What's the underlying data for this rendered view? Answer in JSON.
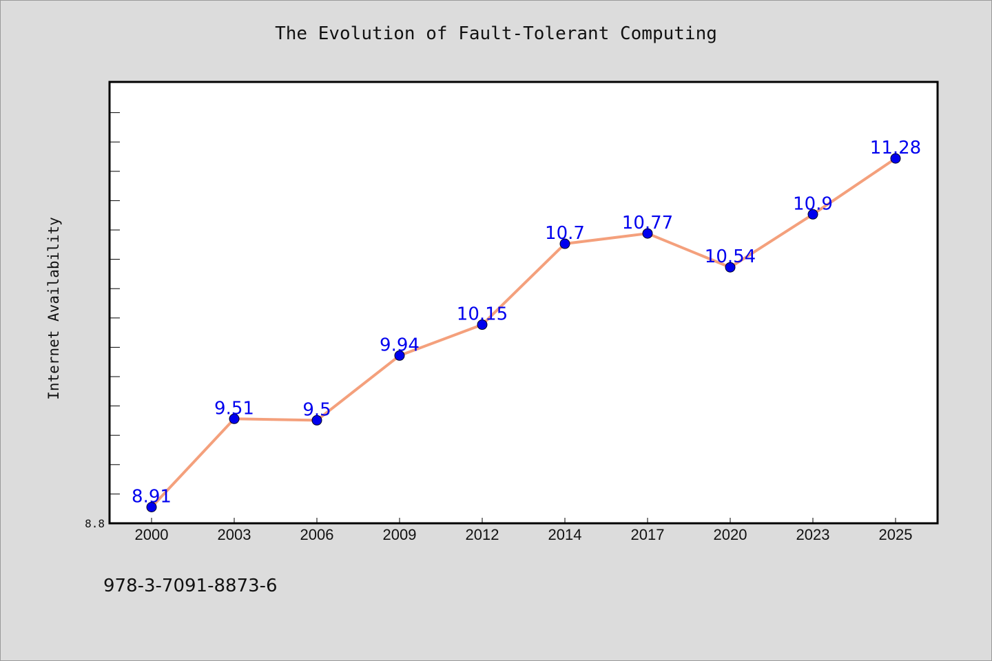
{
  "chart_data": {
    "type": "line",
    "title": "The Evolution of Fault-Tolerant Computing",
    "xlabel": "",
    "ylabel": "Internet Availability",
    "categories": [
      "2000",
      "2003",
      "2006",
      "2009",
      "2012",
      "2014",
      "2017",
      "2020",
      "2023",
      "2025"
    ],
    "series": [
      {
        "values": [
          8.91,
          9.51,
          9.5,
          9.94,
          10.15,
          10.7,
          10.77,
          10.54,
          10.9,
          11.28
        ],
        "line_color": "#f4a07c",
        "marker_color": "#0000ee",
        "label_color": "#0000ee"
      }
    ],
    "ylim": [
      8.8,
      11.8
    ],
    "y_tick_labels": [
      "8.8"
    ],
    "grid": false,
    "legend": "none"
  },
  "footer_text": "978-3-7091-8873-6"
}
